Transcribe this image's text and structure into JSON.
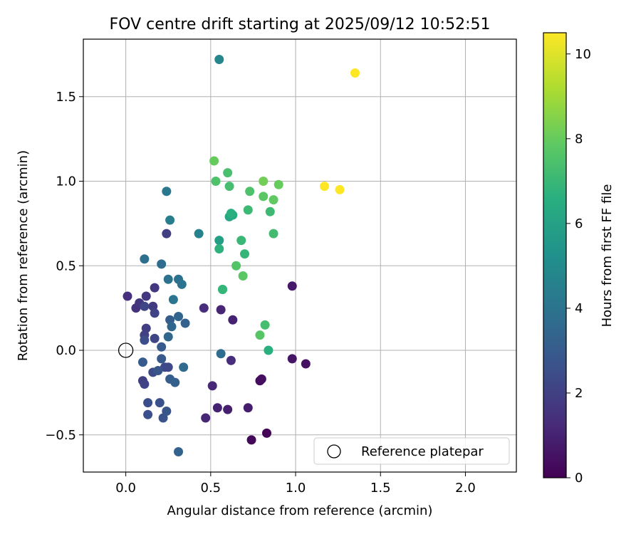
{
  "chart_data": {
    "type": "scatter",
    "title": "FOV centre drift starting at 2025/09/12 10:52:51",
    "xlabel": "Angular distance from reference (arcmin)",
    "ylabel": "Rotation from reference (arcmin)",
    "xlim": [
      -0.25,
      2.3
    ],
    "ylim": [
      -0.72,
      1.84
    ],
    "x_ticks": [
      0.0,
      0.5,
      1.0,
      1.5,
      2.0
    ],
    "x_tick_labels": [
      "0.0",
      "0.5",
      "1.0",
      "1.5",
      "2.0"
    ],
    "y_ticks": [
      -0.5,
      0.0,
      0.5,
      1.0,
      1.5
    ],
    "y_tick_labels": [
      "−0.5",
      "0.0",
      "0.5",
      "1.0",
      "1.5"
    ],
    "grid": true,
    "colormap": "viridis",
    "colorbar": {
      "label": "Hours from first FF file",
      "range": [
        0,
        10.5
      ],
      "ticks": [
        0,
        2,
        4,
        6,
        8,
        10
      ],
      "tick_labels": [
        "0",
        "2",
        "4",
        "6",
        "8",
        "10"
      ]
    },
    "legend": {
      "location": "lower-right",
      "entries": [
        "Reference platepar"
      ]
    },
    "reference_point": {
      "x": 0.0,
      "y": 0.0,
      "label": "Reference platepar"
    },
    "series": [
      {
        "name": "FOV centre",
        "points": [
          {
            "x": 0.83,
            "y": -0.49,
            "c": 0.1
          },
          {
            "x": 0.74,
            "y": -0.53,
            "c": 0.2
          },
          {
            "x": 0.79,
            "y": -0.18,
            "c": 0.3
          },
          {
            "x": 0.8,
            "y": -0.17,
            "c": 0.4
          },
          {
            "x": 1.06,
            "y": -0.08,
            "c": 0.5
          },
          {
            "x": 0.98,
            "y": -0.05,
            "c": 0.6
          },
          {
            "x": 0.98,
            "y": 0.38,
            "c": 0.7
          },
          {
            "x": 0.72,
            "y": -0.34,
            "c": 0.8
          },
          {
            "x": 0.6,
            "y": -0.35,
            "c": 0.9
          },
          {
            "x": 0.54,
            "y": -0.34,
            "c": 1.0
          },
          {
            "x": 0.63,
            "y": 0.18,
            "c": 1.0
          },
          {
            "x": 0.56,
            "y": 0.24,
            "c": 1.1
          },
          {
            "x": 0.47,
            "y": -0.4,
            "c": 1.1
          },
          {
            "x": 0.51,
            "y": -0.21,
            "c": 1.2
          },
          {
            "x": 0.62,
            "y": -0.06,
            "c": 1.3
          },
          {
            "x": 0.46,
            "y": 0.25,
            "c": 1.3
          },
          {
            "x": 0.01,
            "y": 0.32,
            "c": 1.4
          },
          {
            "x": 0.06,
            "y": 0.25,
            "c": 1.5
          },
          {
            "x": 0.08,
            "y": 0.28,
            "c": 1.6
          },
          {
            "x": 0.12,
            "y": 0.32,
            "c": 1.7
          },
          {
            "x": 0.17,
            "y": 0.37,
            "c": 1.7
          },
          {
            "x": 0.16,
            "y": 0.26,
            "c": 1.8
          },
          {
            "x": 0.24,
            "y": 0.69,
            "c": 1.9
          },
          {
            "x": 0.12,
            "y": 0.13,
            "c": 1.9
          },
          {
            "x": 0.11,
            "y": 0.09,
            "c": 2.0
          },
          {
            "x": 0.1,
            "y": -0.18,
            "c": 2.0
          },
          {
            "x": 0.11,
            "y": -0.2,
            "c": 2.1
          },
          {
            "x": 0.17,
            "y": 0.22,
            "c": 2.1
          },
          {
            "x": 0.11,
            "y": 0.26,
            "c": 2.2
          },
          {
            "x": 0.17,
            "y": 0.07,
            "c": 2.2
          },
          {
            "x": 0.23,
            "y": -0.1,
            "c": 2.3
          },
          {
            "x": 0.25,
            "y": -0.1,
            "c": 2.3
          },
          {
            "x": 0.16,
            "y": -0.13,
            "c": 2.4
          },
          {
            "x": 0.11,
            "y": 0.06,
            "c": 2.5
          },
          {
            "x": 0.13,
            "y": -0.31,
            "c": 2.5
          },
          {
            "x": 0.13,
            "y": -0.38,
            "c": 2.6
          },
          {
            "x": 0.2,
            "y": -0.31,
            "c": 2.6
          },
          {
            "x": 0.22,
            "y": -0.4,
            "c": 2.7
          },
          {
            "x": 0.24,
            "y": -0.36,
            "c": 2.8
          },
          {
            "x": 0.19,
            "y": -0.12,
            "c": 2.8
          },
          {
            "x": 0.21,
            "y": -0.05,
            "c": 2.9
          },
          {
            "x": 0.21,
            "y": 0.02,
            "c": 3.0
          },
          {
            "x": 0.1,
            "y": -0.07,
            "c": 3.0
          },
          {
            "x": 0.26,
            "y": 0.18,
            "c": 3.1
          },
          {
            "x": 0.26,
            "y": -0.17,
            "c": 3.1
          },
          {
            "x": 0.29,
            "y": -0.19,
            "c": 3.2
          },
          {
            "x": 0.31,
            "y": -0.6,
            "c": 3.3
          },
          {
            "x": 0.35,
            "y": 0.16,
            "c": 3.3
          },
          {
            "x": 0.31,
            "y": 0.2,
            "c": 3.4
          },
          {
            "x": 0.27,
            "y": 0.14,
            "c": 3.5
          },
          {
            "x": 0.25,
            "y": 0.08,
            "c": 3.5
          },
          {
            "x": 0.34,
            "y": -0.1,
            "c": 3.6
          },
          {
            "x": 0.56,
            "y": -0.02,
            "c": 3.7
          },
          {
            "x": 0.21,
            "y": 0.51,
            "c": 3.7
          },
          {
            "x": 0.11,
            "y": 0.54,
            "c": 3.8
          },
          {
            "x": 0.25,
            "y": 0.42,
            "c": 3.9
          },
          {
            "x": 0.31,
            "y": 0.42,
            "c": 3.9
          },
          {
            "x": 0.33,
            "y": 0.39,
            "c": 4.0
          },
          {
            "x": 0.28,
            "y": 0.3,
            "c": 4.1
          },
          {
            "x": 0.24,
            "y": 0.94,
            "c": 4.2
          },
          {
            "x": 0.26,
            "y": 0.77,
            "c": 4.4
          },
          {
            "x": 0.43,
            "y": 0.69,
            "c": 4.6
          },
          {
            "x": 0.55,
            "y": 1.72,
            "c": 4.8
          },
          {
            "x": 0.55,
            "y": 0.65,
            "c": 5.9
          },
          {
            "x": 0.61,
            "y": 0.79,
            "c": 6.2
          },
          {
            "x": 0.63,
            "y": 0.8,
            "c": 6.4
          },
          {
            "x": 0.62,
            "y": 0.81,
            "c": 6.6
          },
          {
            "x": 0.84,
            "y": 0.0,
            "c": 6.6
          },
          {
            "x": 0.55,
            "y": 0.6,
            "c": 6.7
          },
          {
            "x": 0.57,
            "y": 0.36,
            "c": 6.8
          },
          {
            "x": 0.57,
            "y": 0.36,
            "c": 6.9
          },
          {
            "x": 0.7,
            "y": 0.57,
            "c": 6.9
          },
          {
            "x": 0.68,
            "y": 0.65,
            "c": 7.0
          },
          {
            "x": 0.72,
            "y": 0.83,
            "c": 7.1
          },
          {
            "x": 0.85,
            "y": 0.82,
            "c": 7.1
          },
          {
            "x": 0.87,
            "y": 0.69,
            "c": 7.2
          },
          {
            "x": 0.82,
            "y": 0.15,
            "c": 7.3
          },
          {
            "x": 0.61,
            "y": 0.97,
            "c": 7.3
          },
          {
            "x": 0.6,
            "y": 1.05,
            "c": 7.4
          },
          {
            "x": 0.73,
            "y": 0.94,
            "c": 7.5
          },
          {
            "x": 0.53,
            "y": 1.0,
            "c": 7.5
          },
          {
            "x": 0.65,
            "y": 0.5,
            "c": 7.6
          },
          {
            "x": 0.79,
            "y": 0.09,
            "c": 7.7
          },
          {
            "x": 0.69,
            "y": 0.44,
            "c": 7.8
          },
          {
            "x": 0.81,
            "y": 0.91,
            "c": 7.8
          },
          {
            "x": 0.87,
            "y": 0.89,
            "c": 7.9
          },
          {
            "x": 0.52,
            "y": 1.12,
            "c": 8.0
          },
          {
            "x": 0.9,
            "y": 0.98,
            "c": 8.0
          },
          {
            "x": 0.81,
            "y": 1.0,
            "c": 8.2
          },
          {
            "x": 1.17,
            "y": 0.97,
            "c": 10.5
          },
          {
            "x": 1.26,
            "y": 0.95,
            "c": 10.5
          },
          {
            "x": 1.35,
            "y": 1.64,
            "c": 10.5
          }
        ]
      }
    ]
  }
}
